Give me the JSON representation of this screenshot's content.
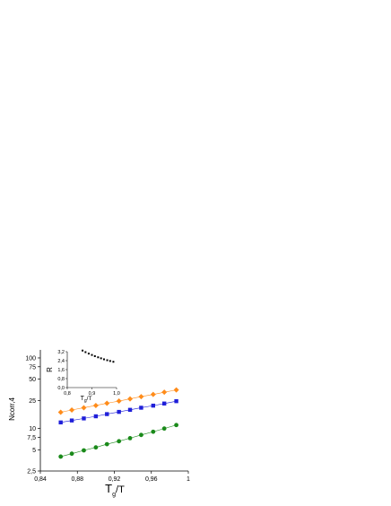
{
  "chart_data": [
    {
      "type": "scatter",
      "xlabel_main": "T",
      "xlabel_sub": "g",
      "xlabel_tail": "/T",
      "ylabel": "Ncorr,4",
      "xlim": [
        0.84,
        1.0
      ],
      "ylim": [
        2.5,
        130
      ],
      "yscale": "log",
      "xticks": [
        0.84,
        0.88,
        0.92,
        0.96,
        1.0
      ],
      "xtick_labels": [
        "0,84",
        "0,88",
        "0,92",
        "0,96",
        "1"
      ],
      "yticks": [
        2.5,
        5,
        7.5,
        10,
        25,
        50,
        75,
        100
      ],
      "ytick_labels": [
        "2,5",
        "5",
        "7,5",
        "10",
        "25",
        "50",
        "75",
        "100"
      ],
      "grid": false,
      "series": [
        {
          "marker": "diamond",
          "color": "#ff8c1a",
          "x": [
            0.862,
            0.874,
            0.887,
            0.9,
            0.912,
            0.925,
            0.937,
            0.949,
            0.962,
            0.974,
            0.987
          ],
          "y": [
            17,
            18.3,
            19.7,
            21.2,
            22.8,
            24.5,
            26.3,
            28.3,
            30.4,
            32.7,
            35.2
          ]
        },
        {
          "marker": "square",
          "color": "#1f1fd9",
          "x": [
            0.862,
            0.874,
            0.887,
            0.9,
            0.912,
            0.925,
            0.937,
            0.949,
            0.962,
            0.974,
            0.987
          ],
          "y": [
            12.2,
            13.0,
            13.9,
            14.9,
            16.0,
            17.2,
            18.4,
            19.7,
            21.1,
            22.6,
            24.4
          ]
        },
        {
          "marker": "circle",
          "color": "#1a8a1a",
          "x": [
            0.862,
            0.874,
            0.887,
            0.9,
            0.912,
            0.925,
            0.937,
            0.949,
            0.962,
            0.974,
            0.987
          ],
          "y": [
            4.0,
            4.4,
            4.9,
            5.4,
            6.0,
            6.6,
            7.3,
            8.1,
            9.0,
            10.0,
            11.2
          ]
        }
      ]
    },
    {
      "type": "scatter",
      "inset": true,
      "xlabel_main": "T",
      "xlabel_sub": "g",
      "xlabel_tail": "/T",
      "ylabel": "R",
      "xlim": [
        0.8,
        1.0
      ],
      "ylim": [
        0.0,
        3.2
      ],
      "xticks": [
        0.8,
        0.9,
        1.0
      ],
      "xtick_labels": [
        "0,8",
        "0,9",
        "1,0"
      ],
      "yticks": [
        0.0,
        0.8,
        1.6,
        2.4,
        3.2
      ],
      "ytick_labels": [
        "0,0",
        "0,8",
        "1,6",
        "2,4",
        "3,2"
      ],
      "series": [
        {
          "marker": "square",
          "color": "#000000",
          "x": [
            0.862,
            0.874,
            0.887,
            0.9,
            0.912,
            0.925,
            0.937,
            0.949,
            0.962,
            0.974,
            0.987
          ],
          "y": [
            3.3,
            3.16,
            3.03,
            2.91,
            2.8,
            2.7,
            2.61,
            2.52,
            2.44,
            2.37,
            2.3
          ]
        }
      ]
    }
  ]
}
